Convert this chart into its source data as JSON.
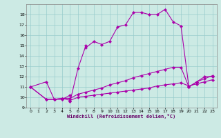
{
  "background_color": "#cceae4",
  "grid_color": "#99cccc",
  "line_color": "#aa00aa",
  "xlim": [
    -0.5,
    23.5
  ],
  "ylim": [
    9,
    19
  ],
  "yticks": [
    9,
    10,
    11,
    12,
    13,
    14,
    15,
    16,
    17,
    18
  ],
  "xticks": [
    0,
    1,
    2,
    3,
    4,
    5,
    6,
    7,
    8,
    9,
    10,
    11,
    12,
    13,
    14,
    15,
    16,
    17,
    18,
    19,
    20,
    21,
    22,
    23
  ],
  "xlabel": "Windchill (Refroidissement éolien,°C)",
  "s1x": [
    0,
    2,
    3,
    4,
    5,
    5,
    6,
    7,
    7,
    8,
    9,
    10,
    11,
    12,
    13,
    14,
    15,
    16,
    17,
    18,
    19,
    20,
    21,
    22,
    23
  ],
  "s1y": [
    11,
    11.5,
    9.8,
    9.8,
    10.2,
    9.6,
    12.8,
    15.0,
    14.8,
    15.4,
    15.1,
    15.4,
    16.8,
    17.0,
    18.2,
    18.2,
    18.0,
    18.0,
    18.5,
    17.3,
    16.9,
    11.0,
    11.5,
    12.0,
    12.0
  ],
  "s2x": [
    0,
    2,
    3,
    4,
    5,
    6,
    7,
    8,
    9,
    10,
    11,
    12,
    13,
    14,
    15,
    16,
    17,
    18,
    19,
    20,
    21,
    22,
    23
  ],
  "s2y": [
    11,
    9.8,
    9.8,
    9.9,
    9.9,
    10.3,
    10.5,
    10.7,
    10.9,
    11.2,
    11.4,
    11.6,
    11.9,
    12.1,
    12.3,
    12.5,
    12.7,
    12.9,
    12.9,
    11.0,
    11.5,
    11.8,
    12.1
  ],
  "s3x": [
    0,
    2,
    3,
    4,
    5,
    6,
    7,
    8,
    9,
    10,
    11,
    12,
    13,
    14,
    15,
    16,
    17,
    18,
    19,
    20,
    21,
    22,
    23
  ],
  "s3y": [
    11,
    9.8,
    9.8,
    9.9,
    9.7,
    10.0,
    10.1,
    10.2,
    10.3,
    10.4,
    10.5,
    10.6,
    10.7,
    10.8,
    10.9,
    11.1,
    11.2,
    11.3,
    11.4,
    11.1,
    11.3,
    11.5,
    11.7
  ]
}
